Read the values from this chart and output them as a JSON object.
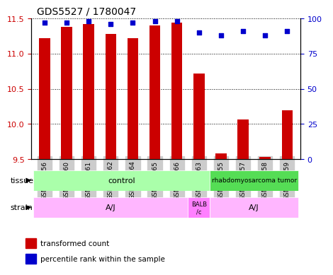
{
  "title": "GDS5527 / 1780047",
  "samples": [
    "GSM738156",
    "GSM738160",
    "GSM738161",
    "GSM738162",
    "GSM738164",
    "GSM738165",
    "GSM738166",
    "GSM738163",
    "GSM738155",
    "GSM738157",
    "GSM738158",
    "GSM738159"
  ],
  "bar_values": [
    11.22,
    11.38,
    11.42,
    11.28,
    11.22,
    11.4,
    11.44,
    10.72,
    9.58,
    10.06,
    9.53,
    10.2
  ],
  "dot_values": [
    97,
    97,
    98,
    96,
    97,
    98,
    98,
    90,
    88,
    91,
    88,
    91
  ],
  "ylim_left": [
    9.5,
    11.5
  ],
  "ylim_right": [
    0,
    100
  ],
  "yticks_left": [
    9.5,
    10.0,
    10.5,
    11.0,
    11.5
  ],
  "yticks_right": [
    0,
    25,
    50,
    75,
    100
  ],
  "bar_color": "#cc0000",
  "dot_color": "#0000cc",
  "bar_bottom": 9.5,
  "tissue_label_control": "control",
  "tissue_label_tumor": "rhabdomyosarcoma tumor",
  "tissue_color_control": "#aaffaa",
  "tissue_color_tumor": "#55dd55",
  "strain_label_aj": "A/J",
  "strain_label_balb": "BALB\n/c",
  "strain_color_light": "#FFB6FF",
  "strain_color_dark": "#FF80FF",
  "legend_red": "transformed count",
  "legend_blue": "percentile rank within the sample",
  "tick_label_color_left": "#cc0000",
  "tick_label_color_right": "#0000cc"
}
